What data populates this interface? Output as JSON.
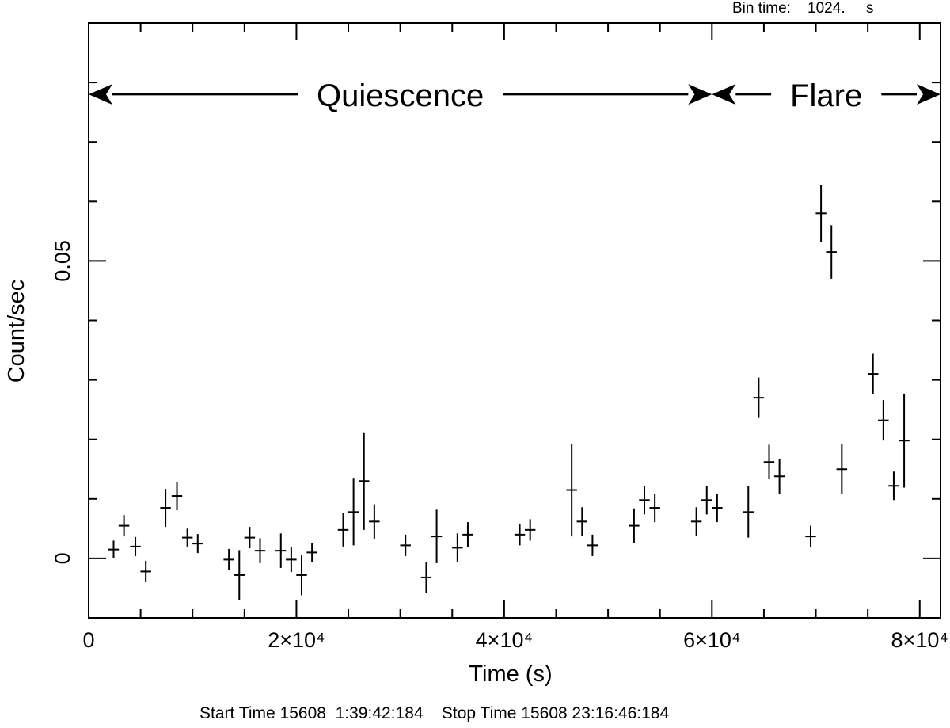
{
  "header": {
    "bin_label": "Bin time:",
    "bin_value": "1024.",
    "bin_unit": "s"
  },
  "footer": {
    "start_label": "Start Time",
    "start_value": "15608  1:39:42:184",
    "stop_label": "Stop Time",
    "stop_value": "15608 23:16:46:184"
  },
  "chart_data": {
    "type": "scatter",
    "title": "",
    "xlabel": "Time (s)",
    "ylabel": "Count/sec",
    "xlim": [
      0,
      82000
    ],
    "ylim": [
      -0.01,
      0.09
    ],
    "x_tick_labels": [
      "0",
      "2×10⁴",
      "4×10⁴",
      "6×10⁴",
      "8×10⁴"
    ],
    "x_tick_values": [
      0,
      20000,
      40000,
      60000,
      80000
    ],
    "y_tick_labels": [
      "0",
      "0.05"
    ],
    "y_tick_values": [
      0,
      0.05
    ],
    "bin_width": 1024,
    "grid": false,
    "annotations": [
      {
        "text": "Quiescence",
        "x_start": 0,
        "x_end": 60000,
        "y": 0.078
      },
      {
        "text": "Flare",
        "x_start": 60000,
        "x_end": 82000,
        "y": 0.078
      }
    ],
    "points": [
      {
        "x": 2400,
        "y": 0.0015,
        "err": 0.0015
      },
      {
        "x": 3400,
        "y": 0.0055,
        "err": 0.0018
      },
      {
        "x": 4500,
        "y": 0.002,
        "err": 0.0016
      },
      {
        "x": 5500,
        "y": -0.0022,
        "err": 0.0018
      },
      {
        "x": 7400,
        "y": 0.0085,
        "err": 0.0032
      },
      {
        "x": 8500,
        "y": 0.0105,
        "err": 0.0024
      },
      {
        "x": 9500,
        "y": 0.0035,
        "err": 0.0015
      },
      {
        "x": 10500,
        "y": 0.0025,
        "err": 0.0016
      },
      {
        "x": 13500,
        "y": -0.0002,
        "err": 0.0018
      },
      {
        "x": 14500,
        "y": -0.0028,
        "err": 0.0042
      },
      {
        "x": 15500,
        "y": 0.0035,
        "err": 0.0018
      },
      {
        "x": 16500,
        "y": 0.0013,
        "err": 0.0021
      },
      {
        "x": 18500,
        "y": 0.0013,
        "err": 0.0029
      },
      {
        "x": 19500,
        "y": -0.0002,
        "err": 0.0021
      },
      {
        "x": 20500,
        "y": -0.0028,
        "err": 0.0034
      },
      {
        "x": 21500,
        "y": 0.001,
        "err": 0.0016
      },
      {
        "x": 24500,
        "y": 0.0048,
        "err": 0.0028
      },
      {
        "x": 25500,
        "y": 0.0078,
        "err": 0.0056
      },
      {
        "x": 26500,
        "y": 0.013,
        "err": 0.0082
      },
      {
        "x": 27500,
        "y": 0.0062,
        "err": 0.0029
      },
      {
        "x": 30500,
        "y": 0.0022,
        "err": 0.0018
      },
      {
        "x": 32500,
        "y": -0.0032,
        "err": 0.0026
      },
      {
        "x": 33500,
        "y": 0.0037,
        "err": 0.0045
      },
      {
        "x": 35500,
        "y": 0.0018,
        "err": 0.0024
      },
      {
        "x": 36500,
        "y": 0.004,
        "err": 0.0021
      },
      {
        "x": 41500,
        "y": 0.004,
        "err": 0.0018
      },
      {
        "x": 42500,
        "y": 0.0048,
        "err": 0.0018
      },
      {
        "x": 46500,
        "y": 0.0115,
        "err": 0.0078
      },
      {
        "x": 47500,
        "y": 0.0062,
        "err": 0.0024
      },
      {
        "x": 48500,
        "y": 0.0022,
        "err": 0.0018
      },
      {
        "x": 52500,
        "y": 0.0055,
        "err": 0.0029
      },
      {
        "x": 53500,
        "y": 0.0098,
        "err": 0.0024
      },
      {
        "x": 54500,
        "y": 0.0085,
        "err": 0.0024
      },
      {
        "x": 58500,
        "y": 0.0062,
        "err": 0.0024
      },
      {
        "x": 59500,
        "y": 0.0098,
        "err": 0.0024
      },
      {
        "x": 60500,
        "y": 0.0085,
        "err": 0.0024
      },
      {
        "x": 63500,
        "y": 0.0078,
        "err": 0.0043
      },
      {
        "x": 64500,
        "y": 0.027,
        "err": 0.0034
      },
      {
        "x": 65500,
        "y": 0.0162,
        "err": 0.0029
      },
      {
        "x": 66500,
        "y": 0.0138,
        "err": 0.0029
      },
      {
        "x": 69500,
        "y": 0.0037,
        "err": 0.0018
      },
      {
        "x": 70500,
        "y": 0.058,
        "err": 0.0048
      },
      {
        "x": 71500,
        "y": 0.0515,
        "err": 0.0045
      },
      {
        "x": 72500,
        "y": 0.015,
        "err": 0.0042
      },
      {
        "x": 75500,
        "y": 0.031,
        "err": 0.0034
      },
      {
        "x": 76500,
        "y": 0.0232,
        "err": 0.0034
      },
      {
        "x": 77500,
        "y": 0.0122,
        "err": 0.0024
      },
      {
        "x": 78500,
        "y": 0.0198,
        "err": 0.0079
      }
    ]
  }
}
